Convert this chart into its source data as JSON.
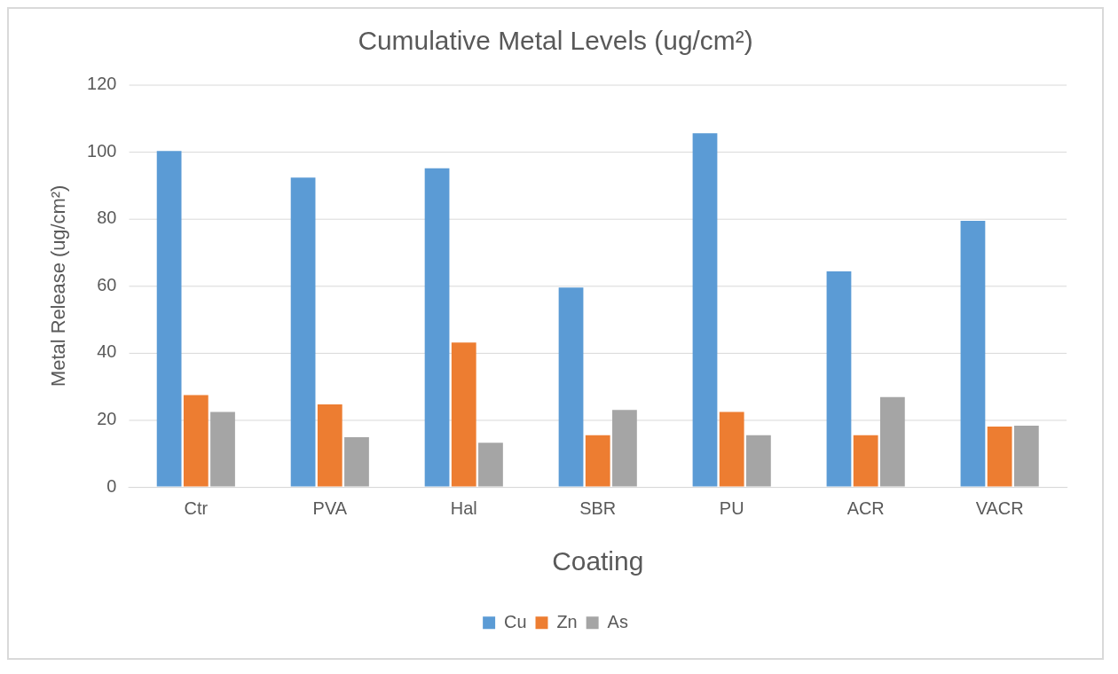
{
  "chart_data": {
    "type": "bar",
    "title": "Cumulative Metal Levels (ug/cm²)",
    "xlabel": "Coating",
    "ylabel": "Metal Release (ug/cm²)",
    "categories": [
      "Ctr",
      "PVA",
      "Hal",
      "SBR",
      "PU",
      "ACR",
      "VACR"
    ],
    "series": [
      {
        "name": "Cu",
        "color": "#5b9bd5",
        "values": [
          100.2,
          92.3,
          95.1,
          59.5,
          105.5,
          64.3,
          79.4
        ]
      },
      {
        "name": "Zn",
        "color": "#ed7d31",
        "values": [
          27.4,
          24.6,
          43.1,
          15.4,
          22.4,
          15.4,
          18.0
        ]
      },
      {
        "name": "As",
        "color": "#a5a5a5",
        "values": [
          22.4,
          14.8,
          13.2,
          23.0,
          15.4,
          26.8,
          18.3
        ]
      }
    ],
    "ylim": [
      0,
      120
    ],
    "yticks": [
      0,
      20,
      40,
      60,
      80,
      100,
      120
    ],
    "grid": "y",
    "legend": "bottom"
  }
}
